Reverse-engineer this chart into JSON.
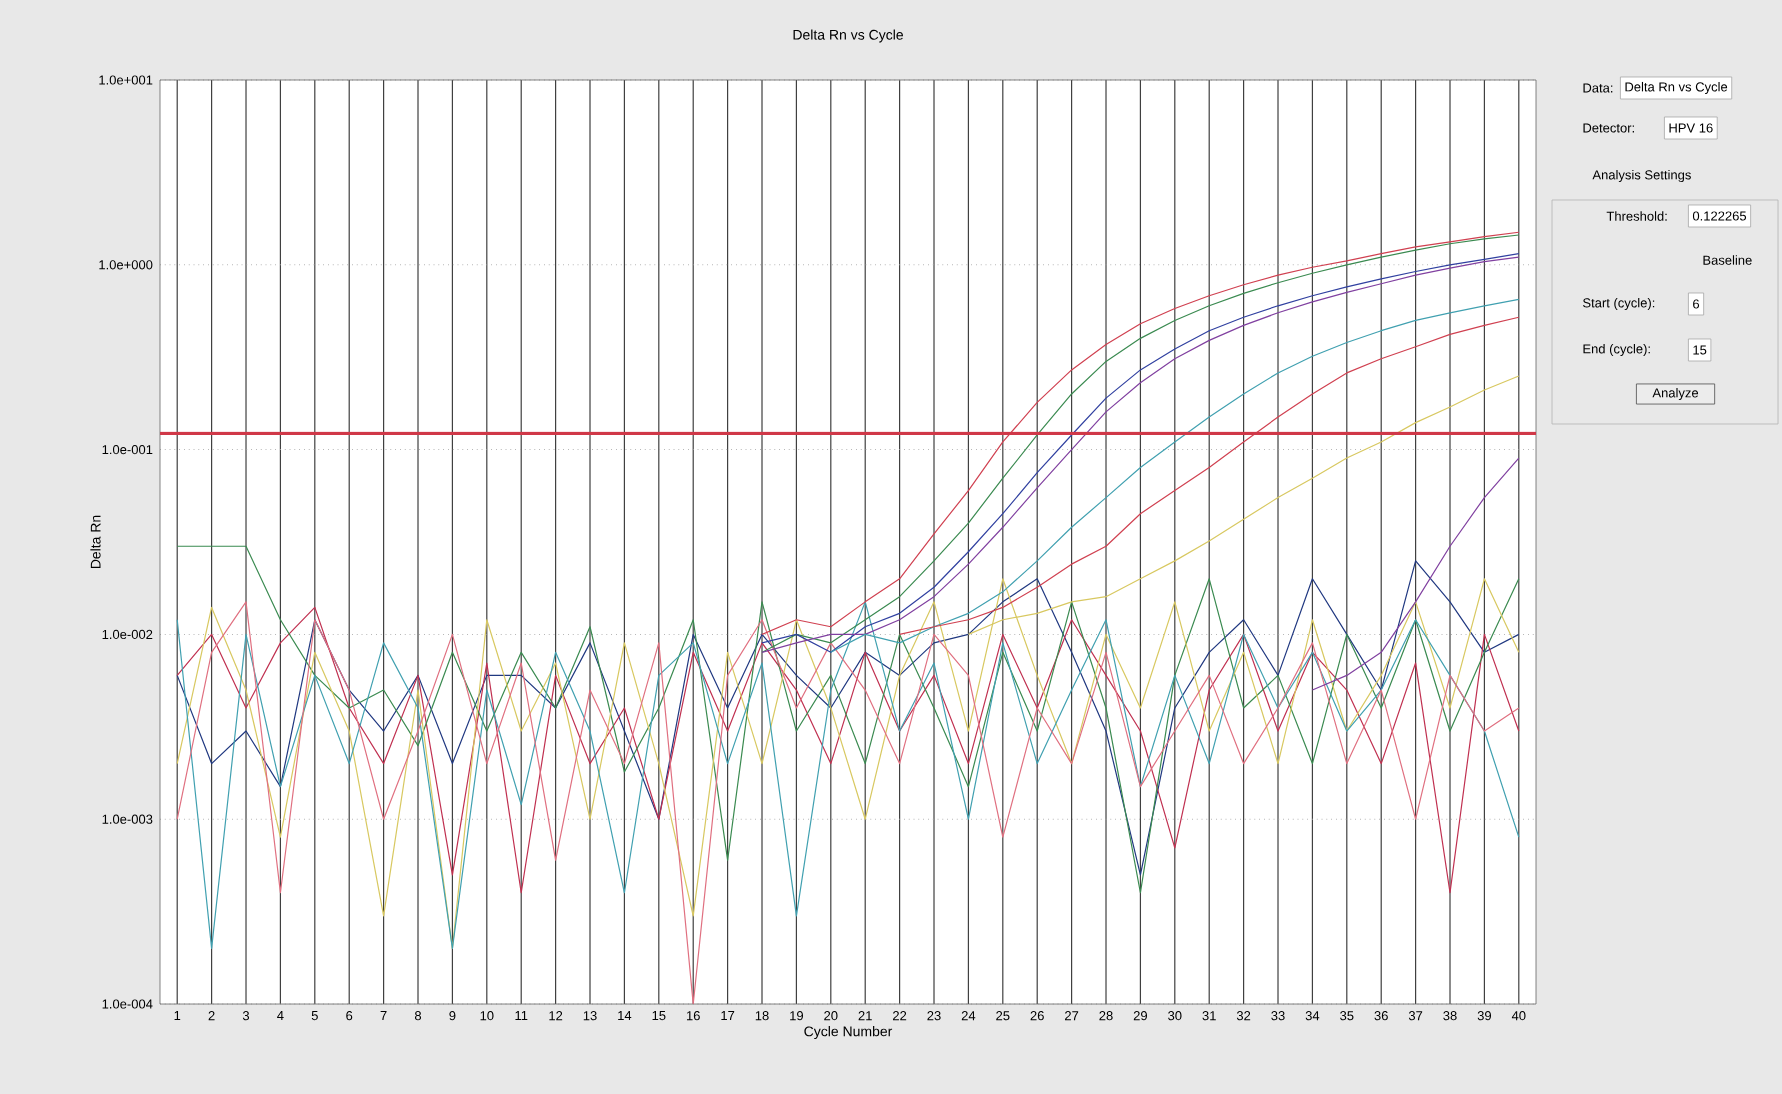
{
  "chart_data": {
    "type": "line",
    "title": "Delta Rn vs Cycle",
    "xlabel": "Cycle Number",
    "ylabel": "Delta Rn",
    "log": "y",
    "grid": true,
    "xlim": [
      0.5,
      40.5
    ],
    "xticks": [
      1,
      2,
      3,
      4,
      5,
      6,
      7,
      8,
      9,
      10,
      11,
      12,
      13,
      14,
      15,
      16,
      17,
      18,
      19,
      20,
      21,
      22,
      23,
      24,
      25,
      26,
      27,
      28,
      29,
      30,
      31,
      32,
      33,
      34,
      35,
      36,
      37,
      38,
      39,
      40
    ],
    "ylim": [
      0.0001,
      10
    ],
    "yticks": [
      {
        "value": 0.0001,
        "label": "1.0e-004"
      },
      {
        "value": 0.001,
        "label": "1.0e-003"
      },
      {
        "value": 0.01,
        "label": "1.0e-002"
      },
      {
        "value": 0.1,
        "label": "1.0e-001"
      },
      {
        "value": 1,
        "label": "1.0e+000"
      },
      {
        "value": 10,
        "label": "1.0e+001"
      }
    ],
    "ref_lines": [
      {
        "axis": "y",
        "value": 0.122265,
        "color": "#d03848"
      }
    ],
    "annotations": [
      "Data:",
      "Delta Rn vs Cycle",
      "Detector:",
      "HPV 16",
      "Analysis Settings",
      "Threshold:",
      "0.122265",
      "Baseline",
      "Start (cycle):",
      "6",
      "End (cycle):",
      "15",
      "Analyze"
    ],
    "series": [
      {
        "color": "#203880",
        "x": [
          1,
          2,
          3,
          4,
          5,
          6,
          7,
          8,
          9,
          10,
          11,
          12,
          13,
          14,
          15,
          16,
          17,
          18,
          19,
          20,
          21,
          22,
          23,
          24,
          25,
          26,
          27,
          28,
          29,
          30,
          31,
          32,
          33,
          34,
          35,
          36,
          37,
          38,
          39,
          40
        ],
        "values": [
          0.006,
          0.002,
          0.003,
          0.0015,
          0.012,
          0.005,
          0.003,
          0.006,
          0.002,
          0.006,
          0.006,
          0.004,
          0.009,
          0.003,
          0.001,
          0.01,
          0.004,
          0.01,
          0.006,
          0.004,
          0.008,
          0.006,
          0.009,
          0.01,
          0.015,
          0.02,
          0.008,
          0.003,
          0.0005,
          0.004,
          0.008,
          0.012,
          0.006,
          0.02,
          0.01,
          0.005,
          0.025,
          0.015,
          0.008,
          0.01
        ]
      },
      {
        "color": "#c03050",
        "x": [
          1,
          2,
          3,
          4,
          5,
          6,
          7,
          8,
          9,
          10,
          11,
          12,
          13,
          14,
          15,
          16,
          17,
          18,
          19,
          20,
          21,
          22,
          23,
          24,
          25,
          26,
          27,
          28,
          29,
          30,
          31,
          32,
          33,
          34,
          35,
          36,
          37,
          38,
          39,
          40
        ],
        "values": [
          0.006,
          0.01,
          0.004,
          0.009,
          0.014,
          0.004,
          0.002,
          0.006,
          0.0005,
          0.007,
          0.0004,
          0.006,
          0.002,
          0.004,
          0.001,
          0.008,
          0.003,
          0.009,
          0.005,
          0.002,
          0.008,
          0.003,
          0.006,
          0.002,
          0.01,
          0.004,
          0.012,
          0.006,
          0.003,
          0.0007,
          0.005,
          0.01,
          0.003,
          0.008,
          0.005,
          0.002,
          0.007,
          0.0004,
          0.01,
          0.003
        ]
      },
      {
        "color": "#3a8a50",
        "x": [
          1,
          2,
          3,
          4,
          5,
          6,
          7,
          8,
          9,
          10,
          11,
          12,
          13,
          14,
          15,
          16,
          17,
          18,
          19,
          20,
          21,
          22,
          23,
          24,
          25,
          26,
          27,
          28,
          29,
          30,
          31,
          32,
          33,
          34,
          35,
          36,
          37,
          38,
          39,
          40
        ],
        "values": [
          0.03,
          0.03,
          0.03,
          0.012,
          0.006,
          0.004,
          0.005,
          0.0025,
          0.008,
          0.003,
          0.008,
          0.004,
          0.011,
          0.0018,
          0.004,
          0.012,
          0.0006,
          0.015,
          0.003,
          0.006,
          0.002,
          0.01,
          0.004,
          0.0015,
          0.008,
          0.003,
          0.015,
          0.004,
          0.0004,
          0.006,
          0.02,
          0.004,
          0.006,
          0.002,
          0.01,
          0.004,
          0.012,
          0.003,
          0.008,
          0.02
        ]
      },
      {
        "color": "#d8c860",
        "x": [
          1,
          2,
          3,
          4,
          5,
          6,
          7,
          8,
          9,
          10,
          11,
          12,
          13,
          14,
          15,
          16,
          17,
          18,
          19,
          20,
          21,
          22,
          23,
          24,
          25,
          26,
          27,
          28,
          29,
          30,
          31,
          32,
          33,
          34,
          35,
          36,
          37,
          38,
          39,
          40
        ],
        "values": [
          0.002,
          0.014,
          0.005,
          0.0008,
          0.008,
          0.003,
          0.0003,
          0.005,
          0.0002,
          0.012,
          0.003,
          0.007,
          0.001,
          0.009,
          0.002,
          0.0003,
          0.008,
          0.002,
          0.012,
          0.004,
          0.001,
          0.006,
          0.015,
          0.003,
          0.02,
          0.006,
          0.002,
          0.01,
          0.004,
          0.015,
          0.003,
          0.008,
          0.002,
          0.012,
          0.003,
          0.006,
          0.015,
          0.004,
          0.02,
          0.008
        ]
      },
      {
        "color": "#40a0b0",
        "x": [
          1,
          2,
          3,
          4,
          5,
          6,
          7,
          8,
          9,
          10,
          11,
          12,
          13,
          14,
          15,
          16,
          17,
          18,
          19,
          20,
          21,
          22,
          23,
          24,
          25,
          26,
          27,
          28,
          29,
          30,
          31,
          32,
          33,
          34,
          35,
          36,
          37,
          38,
          39,
          40
        ],
        "values": [
          0.012,
          0.0002,
          0.01,
          0.0015,
          0.006,
          0.002,
          0.009,
          0.004,
          0.0002,
          0.005,
          0.0012,
          0.008,
          0.003,
          0.0004,
          0.006,
          0.009,
          0.002,
          0.007,
          0.0003,
          0.005,
          0.015,
          0.003,
          0.007,
          0.001,
          0.009,
          0.002,
          0.005,
          0.012,
          0.0015,
          0.006,
          0.002,
          0.01,
          0.004,
          0.008,
          0.003,
          0.005,
          0.012,
          0.006,
          0.003,
          0.0008
        ]
      },
      {
        "color": "#e07080",
        "x": [
          1,
          2,
          3,
          4,
          5,
          6,
          7,
          8,
          9,
          10,
          11,
          12,
          13,
          14,
          15,
          16,
          17,
          18,
          19,
          20,
          21,
          22,
          23,
          24,
          25,
          26,
          27,
          28,
          29,
          30,
          31,
          32,
          33,
          34,
          35,
          36,
          37,
          38,
          39,
          40
        ],
        "values": [
          0.001,
          0.008,
          0.015,
          0.0004,
          0.012,
          0.005,
          0.001,
          0.003,
          0.01,
          0.002,
          0.007,
          0.0006,
          0.005,
          0.002,
          0.009,
          0.0001,
          0.006,
          0.012,
          0.004,
          0.009,
          0.005,
          0.002,
          0.01,
          0.006,
          0.0008,
          0.004,
          0.002,
          0.008,
          0.0015,
          0.003,
          0.006,
          0.002,
          0.004,
          0.009,
          0.002,
          0.005,
          0.001,
          0.006,
          0.003,
          0.004
        ]
      },
      {
        "color": "#d04050",
        "x": [
          18,
          19,
          20,
          21,
          22,
          23,
          24,
          25,
          26,
          27,
          28,
          29,
          30,
          31,
          32,
          33,
          34,
          35,
          36,
          37,
          38,
          39,
          40
        ],
        "values": [
          0.01,
          0.012,
          0.011,
          0.015,
          0.02,
          0.035,
          0.06,
          0.11,
          0.18,
          0.27,
          0.37,
          0.48,
          0.58,
          0.68,
          0.78,
          0.88,
          0.97,
          1.05,
          1.15,
          1.25,
          1.33,
          1.42,
          1.5
        ]
      },
      {
        "color": "#3a8a50",
        "x": [
          18,
          19,
          20,
          21,
          22,
          23,
          24,
          25,
          26,
          27,
          28,
          29,
          30,
          31,
          32,
          33,
          34,
          35,
          36,
          37,
          38,
          39,
          40
        ],
        "values": [
          0.008,
          0.01,
          0.009,
          0.012,
          0.016,
          0.025,
          0.04,
          0.07,
          0.12,
          0.2,
          0.3,
          0.4,
          0.5,
          0.6,
          0.7,
          0.8,
          0.9,
          1.0,
          1.1,
          1.2,
          1.3,
          1.38,
          1.45
        ]
      },
      {
        "color": "#3040a0",
        "x": [
          18,
          19,
          20,
          21,
          22,
          23,
          24,
          25,
          26,
          27,
          28,
          29,
          30,
          31,
          32,
          33,
          34,
          35,
          36,
          37,
          38,
          39,
          40
        ],
        "values": [
          0.009,
          0.01,
          0.008,
          0.011,
          0.013,
          0.018,
          0.028,
          0.045,
          0.075,
          0.12,
          0.19,
          0.27,
          0.35,
          0.44,
          0.52,
          0.6,
          0.68,
          0.76,
          0.84,
          0.92,
          1.0,
          1.07,
          1.15
        ]
      },
      {
        "color": "#8040a0",
        "x": [
          18,
          19,
          20,
          21,
          22,
          23,
          24,
          25,
          26,
          27,
          28,
          29,
          30,
          31,
          32,
          33,
          34,
          35,
          36,
          37,
          38,
          39,
          40
        ],
        "values": [
          0.008,
          0.009,
          0.01,
          0.01,
          0.012,
          0.016,
          0.024,
          0.038,
          0.062,
          0.1,
          0.16,
          0.23,
          0.31,
          0.39,
          0.47,
          0.55,
          0.63,
          0.71,
          0.79,
          0.88,
          0.96,
          1.04,
          1.1
        ]
      },
      {
        "color": "#40a0b0",
        "x": [
          20,
          21,
          22,
          23,
          24,
          25,
          26,
          27,
          28,
          29,
          30,
          31,
          32,
          33,
          34,
          35,
          36,
          37,
          38,
          39,
          40
        ],
        "values": [
          0.008,
          0.01,
          0.009,
          0.011,
          0.013,
          0.017,
          0.025,
          0.038,
          0.055,
          0.08,
          0.11,
          0.15,
          0.2,
          0.26,
          0.32,
          0.38,
          0.44,
          0.5,
          0.55,
          0.6,
          0.65
        ]
      },
      {
        "color": "#d04050",
        "x": [
          22,
          23,
          24,
          25,
          26,
          27,
          28,
          29,
          30,
          31,
          32,
          33,
          34,
          35,
          36,
          37,
          38,
          39,
          40
        ],
        "values": [
          0.01,
          0.011,
          0.012,
          0.014,
          0.018,
          0.024,
          0.03,
          0.045,
          0.06,
          0.08,
          0.11,
          0.15,
          0.2,
          0.26,
          0.31,
          0.36,
          0.42,
          0.47,
          0.52
        ]
      },
      {
        "color": "#d8c860",
        "x": [
          24,
          25,
          26,
          27,
          28,
          29,
          30,
          31,
          32,
          33,
          34,
          35,
          36,
          37,
          38,
          39,
          40
        ],
        "values": [
          0.01,
          0.012,
          0.013,
          0.015,
          0.016,
          0.02,
          0.025,
          0.032,
          0.042,
          0.055,
          0.07,
          0.09,
          0.11,
          0.14,
          0.17,
          0.21,
          0.25
        ]
      },
      {
        "color": "#8040a0",
        "x": [
          34,
          35,
          36,
          37,
          38,
          39,
          40
        ],
        "values": [
          0.005,
          0.006,
          0.008,
          0.015,
          0.03,
          0.055,
          0.09
        ]
      }
    ]
  }
}
